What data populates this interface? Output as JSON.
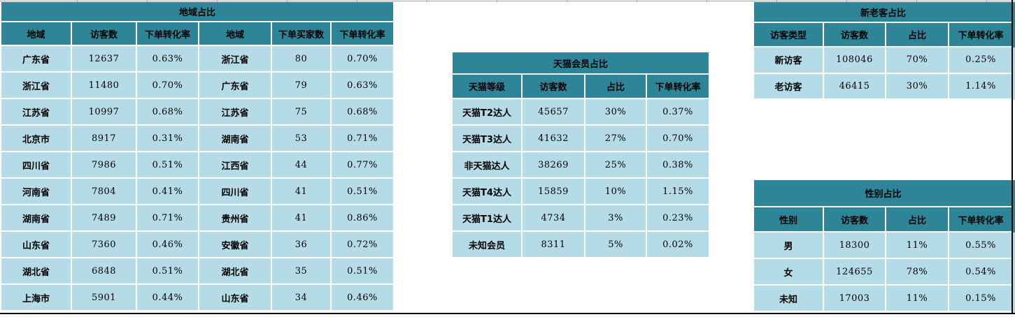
{
  "colors": {
    "header_teal": "#2e8598",
    "cell_light_blue": "#b5dbe6",
    "separator_white": "#ffffff",
    "pane_border_black": "#000000",
    "gridline_gray": "#a6a6a6"
  },
  "tables": {
    "region": {
      "title": "地域占比",
      "headers": [
        "地域",
        "访客数",
        "下单转化率",
        "地域",
        "下单买家数",
        "下单转化率"
      ],
      "rows": [
        [
          "广东省",
          "12637",
          "0.63%",
          "浙江省",
          "80",
          "0.70%"
        ],
        [
          "浙江省",
          "11480",
          "0.70%",
          "广东省",
          "79",
          "0.63%"
        ],
        [
          "江苏省",
          "10997",
          "0.68%",
          "江苏省",
          "75",
          "0.68%"
        ],
        [
          "北京市",
          "8917",
          "0.31%",
          "湖南省",
          "53",
          "0.71%"
        ],
        [
          "四川省",
          "7986",
          "0.51%",
          "江西省",
          "44",
          "0.77%"
        ],
        [
          "河南省",
          "7804",
          "0.41%",
          "四川省",
          "41",
          "0.51%"
        ],
        [
          "湖南省",
          "7489",
          "0.71%",
          "贵州省",
          "41",
          "0.86%"
        ],
        [
          "山东省",
          "7360",
          "0.46%",
          "安徽省",
          "36",
          "0.72%"
        ],
        [
          "湖北省",
          "6848",
          "0.51%",
          "湖北省",
          "35",
          "0.51%"
        ],
        [
          "上海市",
          "5901",
          "0.44%",
          "山东省",
          "34",
          "0.46%"
        ]
      ]
    },
    "tmall": {
      "title": "天猫会员占比",
      "headers": [
        "天猫等级",
        "访客数",
        "占比",
        "下单转化率"
      ],
      "rows": [
        [
          "天猫T2达人",
          "45657",
          "30%",
          "0.37%"
        ],
        [
          "天猫T3达人",
          "41632",
          "27%",
          "0.70%"
        ],
        [
          "非天猫达人",
          "38269",
          "25%",
          "0.38%"
        ],
        [
          "天猫T4达人",
          "15859",
          "10%",
          "1.15%"
        ],
        [
          "天猫T1达人",
          "4734",
          "3%",
          "0.23%"
        ],
        [
          "未知会员",
          "8311",
          "5%",
          "0.02%"
        ]
      ]
    },
    "visitor_type": {
      "title": "新老客占比",
      "headers": [
        "访客类型",
        "访客数",
        "占比",
        "下单转化率"
      ],
      "rows": [
        [
          "新访客",
          "108046",
          "70%",
          "0.25%"
        ],
        [
          "老访客",
          "46415",
          "30%",
          "1.14%"
        ]
      ]
    },
    "gender": {
      "title": "性别占比",
      "headers": [
        "性别",
        "访客数",
        "占比",
        "下单转化率"
      ],
      "rows": [
        [
          "男",
          "18300",
          "11%",
          "0.55%"
        ],
        [
          "女",
          "124655",
          "78%",
          "0.54%"
        ],
        [
          "未知",
          "17003",
          "11%",
          "0.15%"
        ]
      ]
    }
  }
}
